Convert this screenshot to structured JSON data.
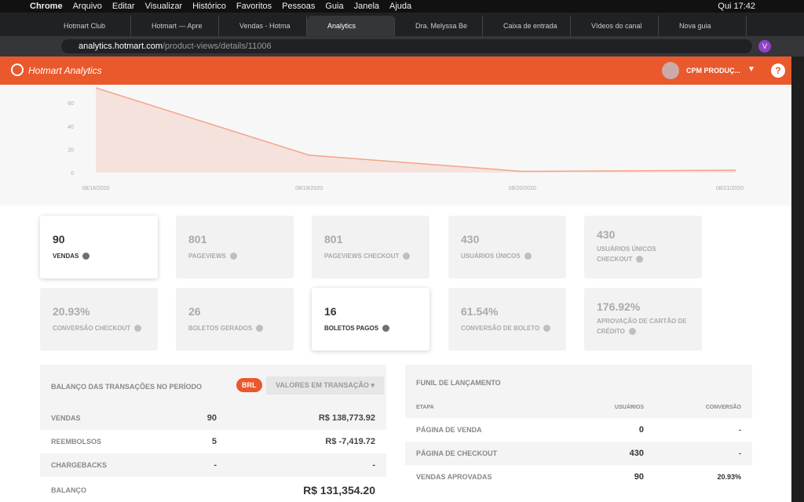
{
  "menubar": {
    "app": "Chrome",
    "items": [
      "Arquivo",
      "Editar",
      "Visualizar",
      "Histórico",
      "Favoritos",
      "Pessoas",
      "Guia",
      "Janela",
      "Ajuda"
    ],
    "clock": "Qui 17:42"
  },
  "tabs": [
    "Hotmart Club",
    "Hotmart — Apre",
    "Vendas - Hotma",
    "Analytics",
    "Dra. Melyssa Be",
    "Caixa de entrada",
    "Vídeos do canal",
    "Nova guia"
  ],
  "url": {
    "host": "analytics.hotmart.com",
    "path": "/product-views/details/11006"
  },
  "profile": "V",
  "header": {
    "brand": "Hotmart Analytics",
    "account": "CPM PRODUÇ...",
    "help": "?"
  },
  "chart_data": {
    "type": "line",
    "x": [
      "08/18/2020",
      "08/19/2020",
      "08/20/2020",
      "08/21/2020"
    ],
    "values": [
      73,
      15,
      1,
      2
    ],
    "color": "#f2a58a",
    "ylim": [
      0,
      73
    ],
    "yticks": [
      0,
      20,
      40,
      60
    ]
  },
  "metrics": [
    {
      "value": "90",
      "label": "VENDAS"
    },
    {
      "value": "801",
      "label": "PAGEVIEWS"
    },
    {
      "value": "801",
      "label": "PAGEVIEWS CHECKOUT"
    },
    {
      "value": "430",
      "label": "USUÁRIOS ÚNICOS"
    },
    {
      "value": "430",
      "label": "USUÁRIOS ÚNICOS CHECKOUT"
    },
    {
      "value": "20.93%",
      "label": "CONVERSÃO CHECKOUT"
    },
    {
      "value": "26",
      "label": "BOLETOS GERADOS"
    },
    {
      "value": "16",
      "label": "BOLETOS PAGOS"
    },
    {
      "value": "61.54%",
      "label": "CONVERSÃO DE BOLETO"
    },
    {
      "value": "176.92%",
      "label": "APROVAÇÃO DE CARTÃO DE CRÉDITO"
    }
  ],
  "balance": {
    "title": "BALANÇO DAS TRANSAÇÕES NO PERÍODO",
    "currency": "BRL",
    "dropdown": "VALORES EM TRANSAÇÃO",
    "rows": [
      [
        "VENDAS",
        "90",
        "R$ 138,773.92"
      ],
      [
        "REEMBOLSOS",
        "5",
        "R$ -7,419.72"
      ],
      [
        "CHARGEBACKS",
        "-",
        "-"
      ]
    ],
    "total": {
      "label": "BALANÇO",
      "value": "R$ 131,354.20"
    }
  },
  "funnel": {
    "title": "FUNIL DE LANÇAMENTO",
    "columns": [
      "ETAPA",
      "USUÁRIOS",
      "CONVERSÃO"
    ],
    "rows": [
      [
        "PÁGINA DE VENDA",
        "0",
        "-"
      ],
      [
        "PÁGINA DE CHECKOUT",
        "430",
        "-"
      ],
      [
        "VENDAS APROVADAS",
        "90",
        "20.93%"
      ]
    ]
  }
}
